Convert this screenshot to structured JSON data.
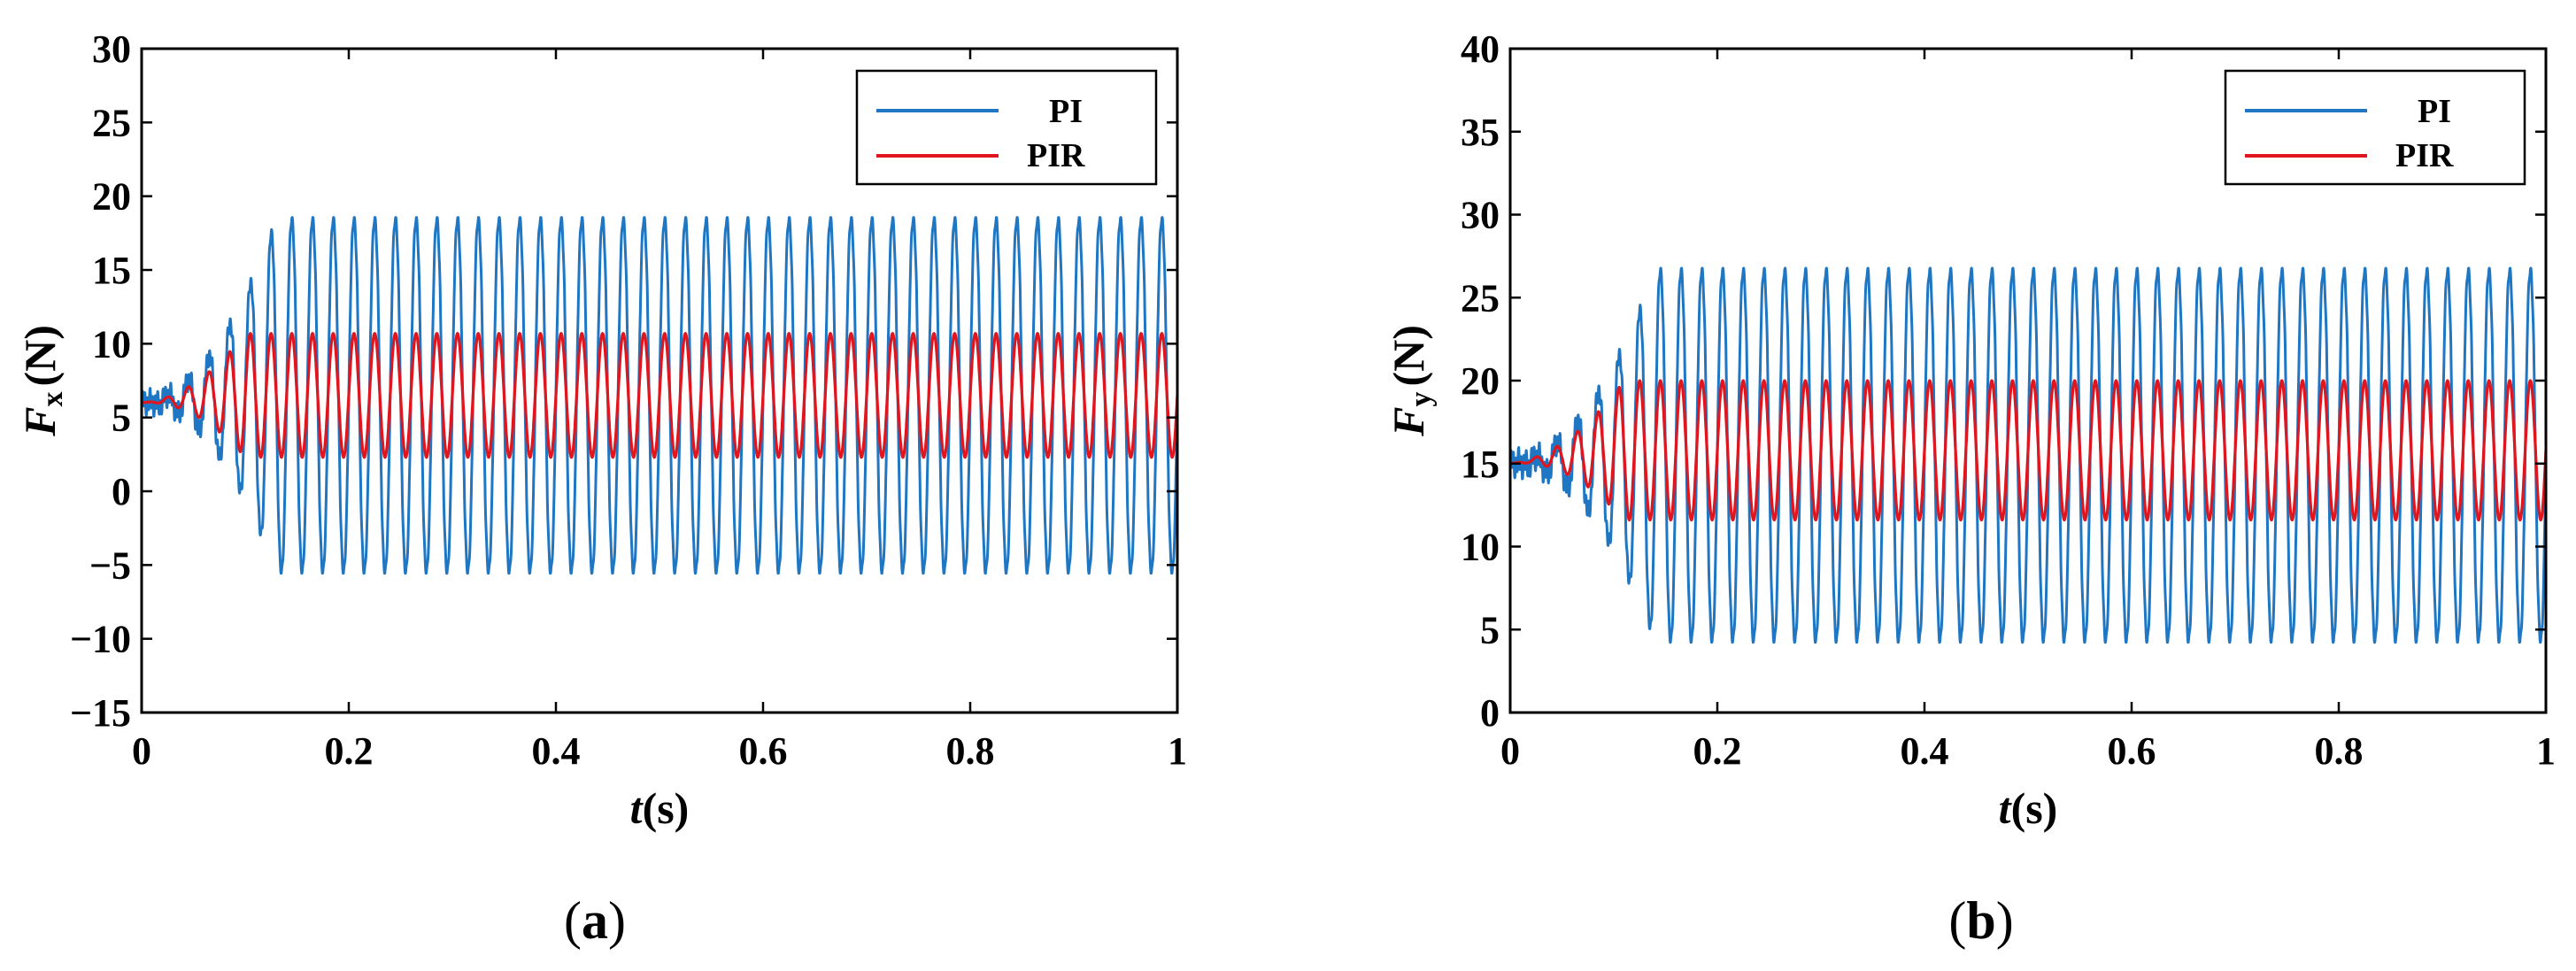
{
  "chart_data": [
    {
      "type": "line",
      "id": "a",
      "caption_letter": "a",
      "ylabel_main": "F",
      "ylabel_sub": "x",
      "ylabel_unit": "(N)",
      "xlabel_main": "t",
      "xlabel_unit": "(s)",
      "xlim": [
        0,
        1
      ],
      "ylim": [
        -15,
        30
      ],
      "xticks": [
        0,
        0.2,
        0.4,
        0.6,
        0.8,
        1
      ],
      "xtick_labels": [
        "0",
        "0.2",
        "0.4",
        "0.6",
        "0.8",
        "1"
      ],
      "yticks": [
        -15,
        -10,
        -5,
        0,
        5,
        10,
        15,
        20,
        25,
        30
      ],
      "ytick_labels": [
        "−15",
        "−10",
        "−5",
        "0",
        "5",
        "10",
        "15",
        "20",
        "25",
        "30"
      ],
      "legend_position": "top-right",
      "freq_hz": 50,
      "series": [
        {
          "name": "PI",
          "color": "#1f77c4",
          "steady_center": 6.5,
          "steady_amplitude": 12.3,
          "initial_value": 6,
          "settle_time_s": 0.13
        },
        {
          "name": "PIR",
          "color": "#e0151d",
          "steady_center": 6.5,
          "steady_amplitude": 4.2,
          "initial_value": 6,
          "settle_time_s": 0.1
        }
      ]
    },
    {
      "type": "line",
      "id": "b",
      "caption_letter": "b",
      "ylabel_main": "F",
      "ylabel_sub": "y",
      "ylabel_unit": "(N)",
      "xlabel_main": "t",
      "xlabel_unit": "(s)",
      "xlim": [
        0,
        1
      ],
      "ylim": [
        0,
        40
      ],
      "xticks": [
        0,
        0.2,
        0.4,
        0.6,
        0.8,
        1
      ],
      "xtick_labels": [
        "0",
        "0.2",
        "0.4",
        "0.6",
        "0.8",
        "1"
      ],
      "yticks": [
        0,
        5,
        10,
        15,
        20,
        25,
        30,
        35,
        40
      ],
      "ytick_labels": [
        "0",
        "5",
        "10",
        "15",
        "20",
        "25",
        "30",
        "35",
        "40"
      ],
      "legend_position": "top-right",
      "freq_hz": 50,
      "series": [
        {
          "name": "PI",
          "color": "#1f77c4",
          "steady_center": 15.5,
          "steady_amplitude": 11.5,
          "initial_value": 15,
          "settle_time_s": 0.14
        },
        {
          "name": "PIR",
          "color": "#e0151d",
          "steady_center": 15.8,
          "steady_amplitude": 4.2,
          "initial_value": 15,
          "settle_time_s": 0.11
        }
      ]
    }
  ]
}
